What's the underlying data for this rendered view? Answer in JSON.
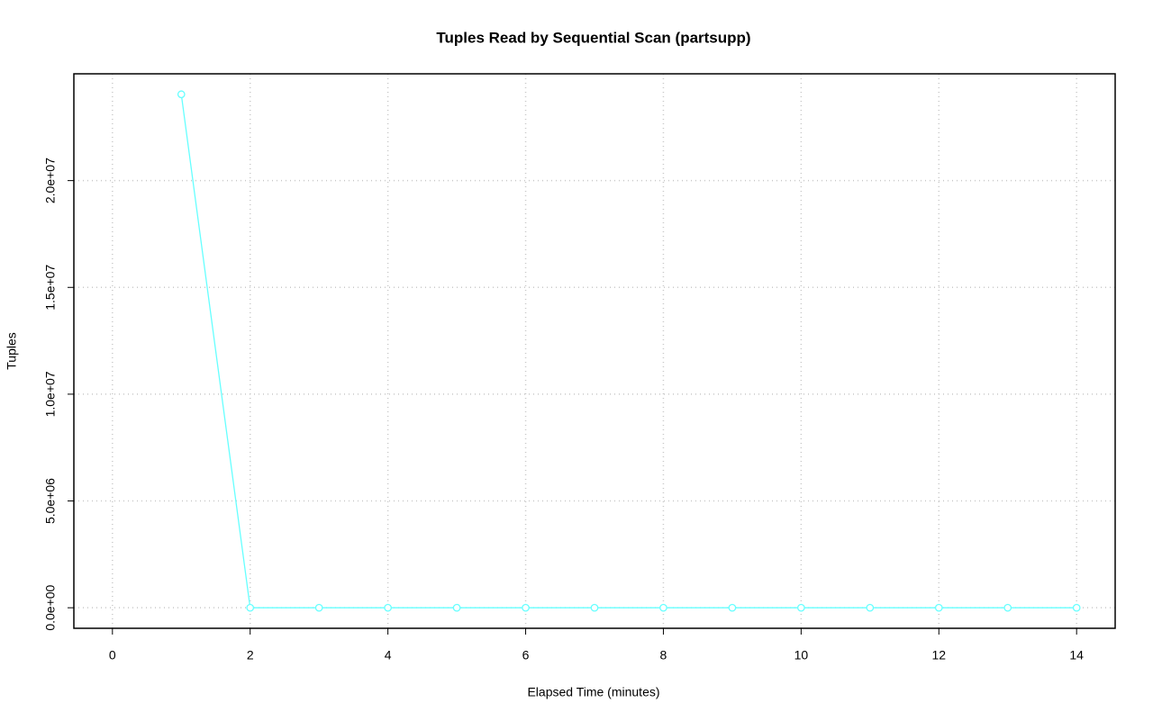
{
  "chart_data": {
    "type": "line",
    "title": "Tuples Read by Sequential Scan (partsupp)",
    "x_label": "Elapsed Time (minutes)",
    "y_label": "Tuples",
    "x": [
      1,
      2,
      3,
      4,
      5,
      6,
      7,
      8,
      9,
      10,
      11,
      12,
      13,
      14
    ],
    "series": [
      {
        "name": "partsupp",
        "color": "#66ffff",
        "values": [
          24040000,
          0,
          0,
          0,
          0,
          0,
          0,
          0,
          0,
          0,
          0,
          0,
          0,
          0
        ]
      }
    ],
    "xlim": [
      -0.56,
      14.56
    ],
    "xticks": [
      0,
      2,
      4,
      6,
      8,
      10,
      12,
      14
    ],
    "ylim": [
      -961600,
      25000000
    ],
    "yticks": [
      {
        "value": 0,
        "label": "0.0e+00"
      },
      {
        "value": 5000000,
        "label": "5.0e+06"
      },
      {
        "value": 10000000,
        "label": "1.0e+07"
      },
      {
        "value": 15000000,
        "label": "1.5e+07"
      },
      {
        "value": 20000000,
        "label": "2.0e+07"
      }
    ],
    "grid": true
  }
}
